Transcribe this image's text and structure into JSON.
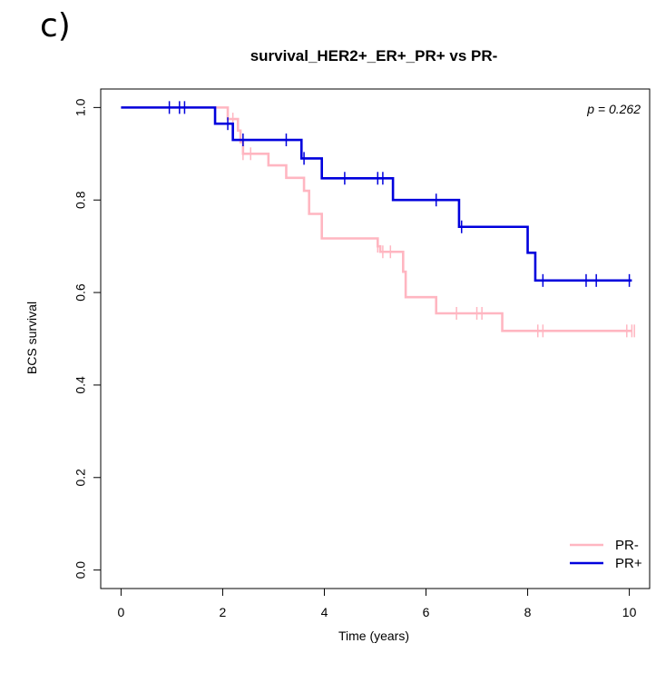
{
  "panel_label": "c)",
  "chart_data": {
    "type": "line",
    "title": "survival_HER2+_ER+_PR+ vs PR-",
    "xlabel": "Time (years)",
    "ylabel": "BCS survival",
    "xlim": [
      -0.4,
      10.4
    ],
    "ylim": [
      -0.04,
      1.04
    ],
    "xticks": [
      0,
      2,
      4,
      6,
      8,
      10
    ],
    "xtick_labels": [
      "0",
      "2",
      "4",
      "6",
      "8",
      "10"
    ],
    "yticks": [
      0.0,
      0.2,
      0.4,
      0.6,
      0.8,
      1.0
    ],
    "ytick_labels": [
      "0.0",
      "0.2",
      "0.4",
      "0.6",
      "0.8",
      "1.0"
    ],
    "annotation": "p = 0.262",
    "legend_position": "bottom-right",
    "series": [
      {
        "name": "PR-",
        "color": "#FFB6C1",
        "steps": [
          [
            0,
            1.0
          ],
          [
            2.1,
            0.975
          ],
          [
            2.3,
            0.95
          ],
          [
            2.35,
            0.925
          ],
          [
            2.4,
            0.9
          ],
          [
            2.9,
            0.875
          ],
          [
            3.25,
            0.848
          ],
          [
            3.6,
            0.82
          ],
          [
            3.7,
            0.77
          ],
          [
            3.95,
            0.717
          ],
          [
            5.05,
            0.7
          ],
          [
            5.1,
            0.688
          ],
          [
            5.55,
            0.645
          ],
          [
            5.6,
            0.59
          ],
          [
            6.2,
            0.555
          ],
          [
            7.5,
            0.517
          ],
          [
            10.05,
            0.517
          ]
        ],
        "censor_times": [
          2.2,
          2.4,
          2.55,
          5.05,
          5.15,
          5.3,
          6.6,
          7.0,
          7.1,
          8.2,
          8.3,
          9.95,
          10.05,
          10.1
        ]
      },
      {
        "name": "PR+",
        "color": "#0000DD",
        "steps": [
          [
            0,
            1.0
          ],
          [
            1.85,
            0.965
          ],
          [
            2.2,
            0.93
          ],
          [
            3.55,
            0.89
          ],
          [
            3.95,
            0.847
          ],
          [
            5.35,
            0.8
          ],
          [
            6.65,
            0.742
          ],
          [
            8.0,
            0.686
          ],
          [
            8.15,
            0.626
          ],
          [
            10.05,
            0.626
          ]
        ],
        "censor_times": [
          0.95,
          1.15,
          1.25,
          2.1,
          2.4,
          3.25,
          3.6,
          4.4,
          5.05,
          5.15,
          6.2,
          6.7,
          8.3,
          9.15,
          9.35,
          10.0
        ]
      }
    ]
  }
}
